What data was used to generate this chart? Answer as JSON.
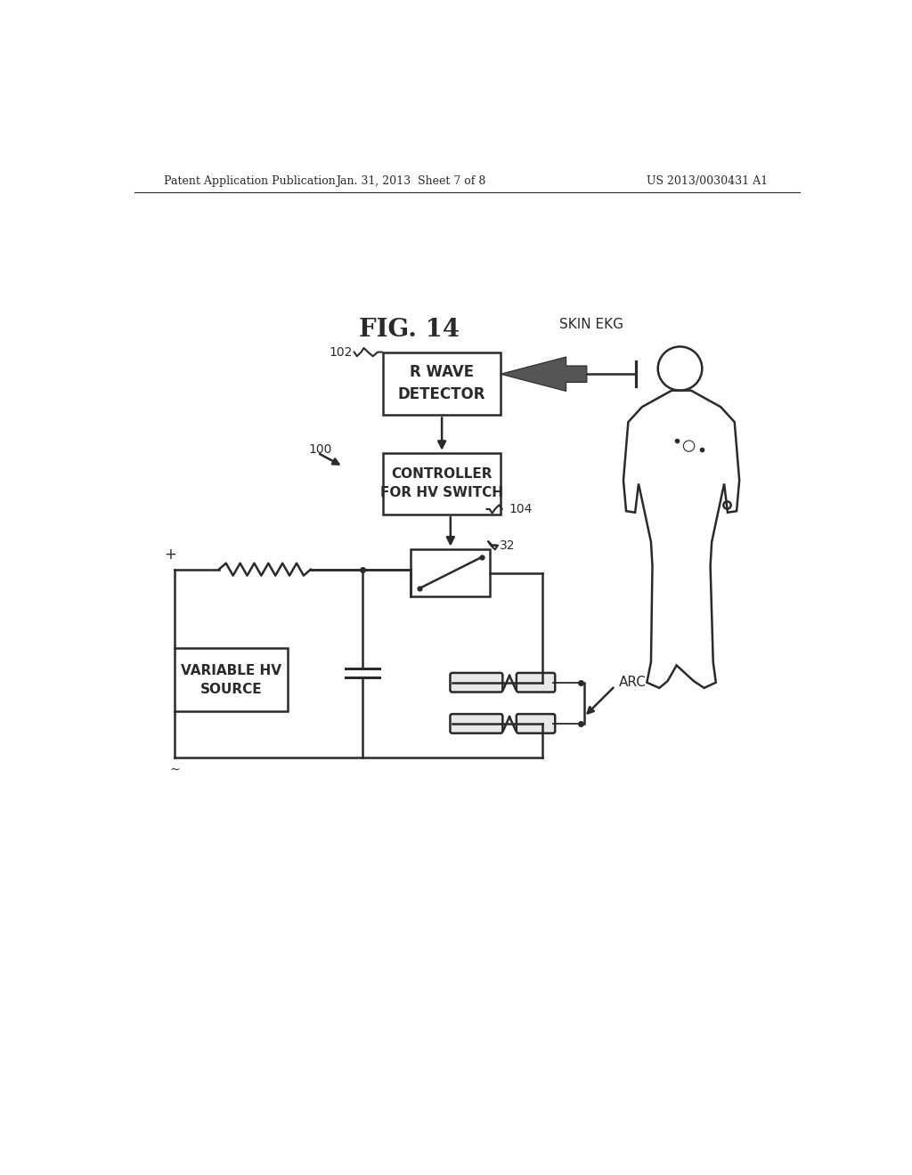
{
  "bg_color": "#ffffff",
  "line_color": "#2a2a2a",
  "header_text_left": "Patent Application Publication",
  "header_text_mid": "Jan. 31, 2013  Sheet 7 of 8",
  "header_text_right": "US 2013/0030431 A1",
  "fig_label": "FIG. 14",
  "label_100": "100",
  "label_102": "102",
  "label_104": "104",
  "label_32": "32",
  "label_arc": "ARC",
  "label_skin_ekg": "SKIN EKG",
  "box1_text": "R WAVE\nDETECTOR",
  "box2_text": "CONTROLLER\nFOR HV SWITCH",
  "box3_text": "VARIABLE HV\nSOURCE",
  "plus_label": "+",
  "tilde_label": "~"
}
